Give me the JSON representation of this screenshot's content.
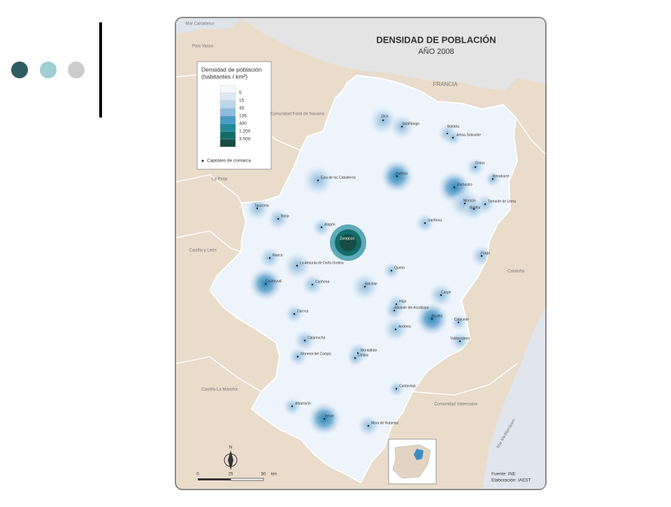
{
  "map": {
    "title": "DENSIDAD DE POBLACIÓN",
    "subtitle": "AÑO 2008",
    "legend": {
      "title": [
        "Densidad de población",
        "(habitantes / km²)"
      ],
      "labels": [
        "5",
        "15",
        "45",
        "135",
        "400",
        "1.200",
        "3.500"
      ],
      "capitals_label": "Capitales de comarca"
    },
    "regions": [
      "Mar Cantábrico",
      "País Vasco",
      "Comunidad Foral de Navarra",
      "La Rioja",
      "Castilla y León",
      "Castilla-La Mancha",
      "FRANCIA",
      "Cataluña",
      "Comunidad Valenciana",
      "Mar Mediterráneo"
    ],
    "towns": [
      "Jaca",
      "Sabiñánigo",
      "Boltaña",
      "Aínsa-Sobrarbe",
      "Graus",
      "Benabarre",
      "Ejea de los Caballeros",
      "Huesca",
      "Barbastro",
      "Monzón",
      "Binéfar",
      "Tamarite de Litera",
      "Tarazona",
      "Borja",
      "Sariñena",
      "Alagón",
      "Zaragoza",
      "Fraga",
      "Illueca",
      "La Almunia de Doña Godina",
      "Quinto",
      "Calatayud",
      "Cariñena",
      "Belchite",
      "Caspe",
      "Híjar",
      "Albalate del Arzobispo",
      "Alcañiz",
      "Daroca",
      "Calaceite",
      "Andorra",
      "Calamocha",
      "Valderrobres",
      "Montalbán",
      "Utrillas",
      "Monreal del Campo",
      "Cantavieja",
      "Albarracín",
      "Teruel",
      "Mora de Rubielos"
    ],
    "scale": [
      "0",
      "25",
      "50",
      "km"
    ],
    "source": [
      "Fuente: INE",
      "Elaboración: IAEST"
    ]
  }
}
